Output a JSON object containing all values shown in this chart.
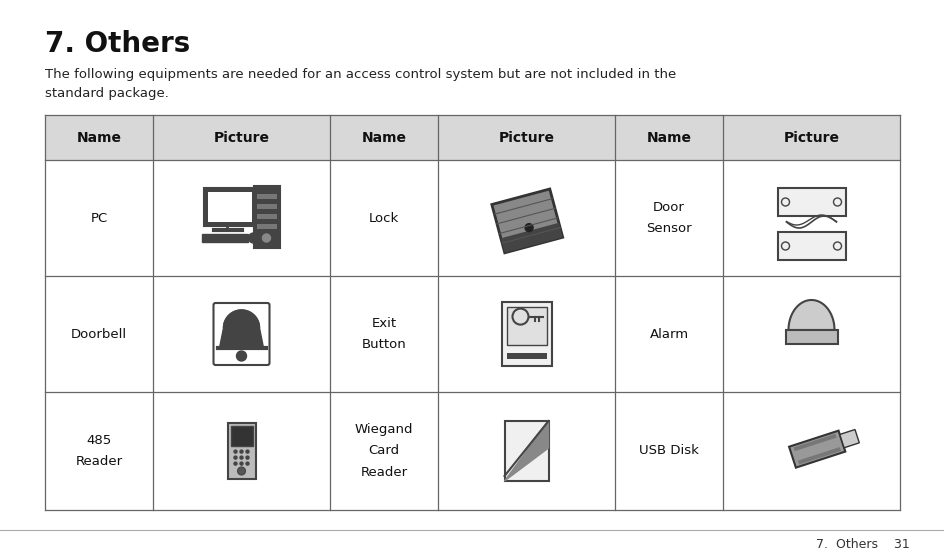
{
  "title": "7. Others",
  "subtitle": "The following equipments are needed for an access control system but are not included in the\nstandard package.",
  "footer": "7.  Others    31",
  "bg_color": "#ffffff",
  "header_bg": "#d8d8d8",
  "table_border": "#666666",
  "title_fontsize": 20,
  "subtitle_fontsize": 9.5,
  "header_fontsize": 10,
  "cell_fontsize": 9.5,
  "footer_fontsize": 9,
  "col_headers": [
    "Name",
    "Picture",
    "Name",
    "Picture",
    "Name",
    "Picture"
  ],
  "row_names": [
    [
      "PC",
      "Lock",
      "Door\nSensor"
    ],
    [
      "Doorbell",
      "Exit\nButton",
      "Alarm"
    ],
    [
      "485\nReader",
      "Wiegand\nCard\nReader",
      "USB Disk"
    ]
  ],
  "icon_color": "#444444",
  "icon_light": "#aaaaaa",
  "icon_dark": "#333333",
  "icon_white": "#ffffff",
  "icon_gray": "#888888"
}
